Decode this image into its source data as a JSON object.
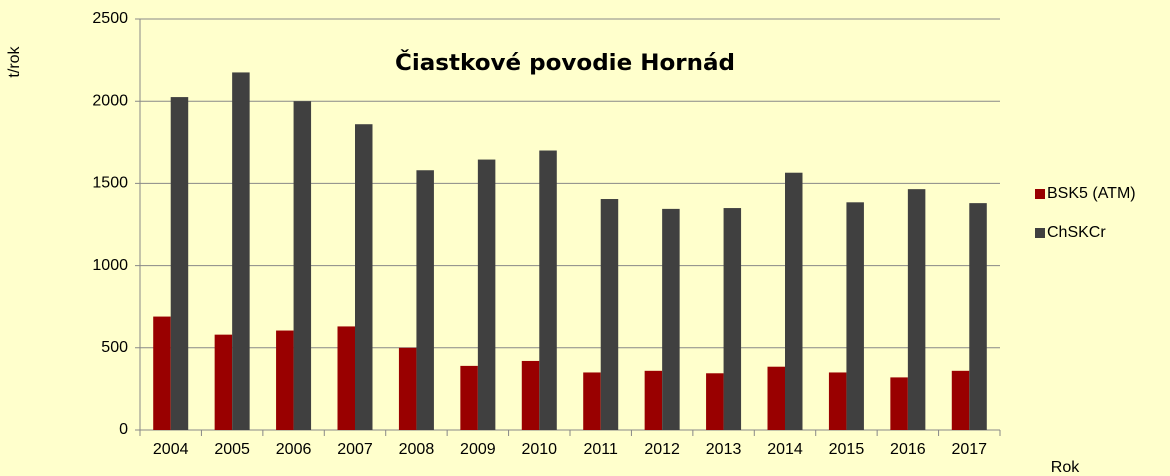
{
  "chart_data": {
    "type": "bar",
    "title": "Čiastkové povodie  Hornád",
    "y_label": "t/rok",
    "x_label": "Rok",
    "categories": [
      "2004",
      "2005",
      "2006",
      "2007",
      "2008",
      "2009",
      "2010",
      "2011",
      "2012",
      "2013",
      "2014",
      "2015",
      "2016",
      "2017"
    ],
    "series": [
      {
        "name": "BSK5 (ATM)",
        "color": "#990000",
        "values": [
          690,
          580,
          605,
          630,
          500,
          390,
          420,
          350,
          360,
          345,
          385,
          350,
          320,
          360
        ]
      },
      {
        "name": "ChSKCr",
        "color": "#404040",
        "values": [
          2025,
          2175,
          2000,
          1860,
          1580,
          1645,
          1700,
          1405,
          1345,
          1350,
          1565,
          1385,
          1465,
          1380
        ]
      }
    ],
    "ylim": [
      0,
      2500
    ],
    "yticks": [
      0,
      500,
      1000,
      1500,
      2000,
      2500
    ],
    "grid": true,
    "legend": "right"
  }
}
